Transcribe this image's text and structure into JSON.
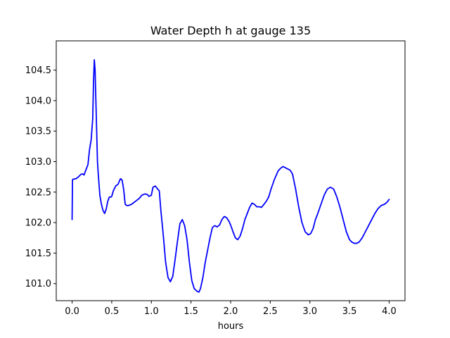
{
  "chart_data": {
    "type": "line",
    "title": "Water Depth h at gauge 135",
    "xlabel": "hours",
    "ylabel": "",
    "xlim": [
      -0.2,
      4.2
    ],
    "ylim": [
      100.72,
      104.98
    ],
    "xticks": [
      0.0,
      0.5,
      1.0,
      1.5,
      2.0,
      2.5,
      3.0,
      3.5,
      4.0
    ],
    "xtick_labels": [
      "0.0",
      "0.5",
      "1.0",
      "1.5",
      "2.0",
      "2.5",
      "3.0",
      "3.5",
      "4.0"
    ],
    "yticks": [
      101.0,
      101.5,
      102.0,
      102.5,
      103.0,
      103.5,
      104.0,
      104.5
    ],
    "ytick_labels": [
      "101.0",
      "101.5",
      "102.0",
      "102.5",
      "103.0",
      "103.5",
      "104.0",
      "104.5"
    ],
    "grid": false,
    "series": [
      {
        "color": "#0000ff",
        "x": [
          0.0,
          0.005,
          0.01,
          0.05,
          0.08,
          0.11,
          0.13,
          0.15,
          0.17,
          0.2,
          0.22,
          0.24,
          0.26,
          0.27,
          0.28,
          0.29,
          0.3,
          0.31,
          0.32,
          0.33,
          0.35,
          0.37,
          0.39,
          0.41,
          0.43,
          0.45,
          0.47,
          0.49,
          0.5,
          0.52,
          0.55,
          0.58,
          0.61,
          0.63,
          0.65,
          0.67,
          0.69,
          0.71,
          0.75,
          0.8,
          0.85,
          0.88,
          0.92,
          0.95,
          0.97,
          1.0,
          1.02,
          1.05,
          1.08,
          1.1,
          1.12,
          1.15,
          1.18,
          1.21,
          1.24,
          1.27,
          1.3,
          1.33,
          1.36,
          1.39,
          1.42,
          1.45,
          1.48,
          1.51,
          1.54,
          1.57,
          1.6,
          1.62,
          1.65,
          1.68,
          1.71,
          1.74,
          1.77,
          1.8,
          1.83,
          1.86,
          1.89,
          1.92,
          1.95,
          1.98,
          2.0,
          2.03,
          2.06,
          2.09,
          2.12,
          2.15,
          2.18,
          2.21,
          2.24,
          2.27,
          2.3,
          2.33,
          2.36,
          2.39,
          2.42,
          2.45,
          2.48,
          2.51,
          2.55,
          2.6,
          2.63,
          2.66,
          2.69,
          2.72,
          2.75,
          2.78,
          2.82,
          2.86,
          2.9,
          2.94,
          2.98,
          3.01,
          3.04,
          3.07,
          3.1,
          3.14,
          3.18,
          3.22,
          3.26,
          3.3,
          3.34,
          3.38,
          3.42,
          3.46,
          3.5,
          3.53,
          3.56,
          3.59,
          3.62,
          3.66,
          3.7,
          3.74,
          3.78,
          3.82,
          3.86,
          3.9,
          3.94,
          3.97,
          4.0
        ],
        "y": [
          102.05,
          102.7,
          102.71,
          102.72,
          102.75,
          102.79,
          102.8,
          102.78,
          102.85,
          102.95,
          103.2,
          103.35,
          103.7,
          104.3,
          104.67,
          104.5,
          104.0,
          103.5,
          103.0,
          102.8,
          102.45,
          102.3,
          102.2,
          102.15,
          102.22,
          102.35,
          102.42,
          102.42,
          102.43,
          102.52,
          102.6,
          102.63,
          102.72,
          102.7,
          102.55,
          102.3,
          102.28,
          102.28,
          102.3,
          102.35,
          102.4,
          102.45,
          102.47,
          102.46,
          102.43,
          102.45,
          102.58,
          102.6,
          102.55,
          102.52,
          102.2,
          101.8,
          101.35,
          101.1,
          101.03,
          101.12,
          101.4,
          101.7,
          101.98,
          102.05,
          101.95,
          101.72,
          101.35,
          101.05,
          100.92,
          100.88,
          100.86,
          100.92,
          101.1,
          101.35,
          101.55,
          101.75,
          101.92,
          101.95,
          101.93,
          101.96,
          102.05,
          102.1,
          102.08,
          102.02,
          101.96,
          101.85,
          101.75,
          101.72,
          101.78,
          101.9,
          102.05,
          102.15,
          102.25,
          102.32,
          102.3,
          102.26,
          102.26,
          102.25,
          102.3,
          102.35,
          102.42,
          102.55,
          102.7,
          102.85,
          102.89,
          102.92,
          102.9,
          102.88,
          102.86,
          102.8,
          102.55,
          102.25,
          102.0,
          101.85,
          101.8,
          101.82,
          101.9,
          102.05,
          102.15,
          102.3,
          102.45,
          102.55,
          102.58,
          102.55,
          102.42,
          102.25,
          102.05,
          101.85,
          101.72,
          101.68,
          101.66,
          101.66,
          101.68,
          101.75,
          101.85,
          101.95,
          102.05,
          102.15,
          102.23,
          102.28,
          102.3,
          102.33,
          102.38
        ]
      }
    ]
  }
}
